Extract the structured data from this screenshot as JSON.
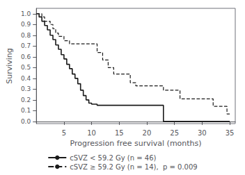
{
  "chart_data": {
    "type": "step",
    "xlabel": "Progression free survival (months)",
    "ylabel": "Surviving",
    "xlim": [
      0,
      36
    ],
    "ylim": [
      -0.02,
      1.05
    ],
    "xticks": [
      5,
      10,
      15,
      20,
      25,
      30,
      35
    ],
    "yticks": [
      {
        "value": 0.0,
        "label": "0.0"
      },
      0.1,
      0.2,
      0.3,
      0.4,
      0.5,
      0.6,
      0.7,
      0.8,
      0.9,
      {
        "value": 1.0,
        "label": "1.0"
      }
    ],
    "grid": false,
    "legend": "bottom",
    "series": [
      {
        "name": "cSVZ < 59.2 Gy (n = 46)",
        "color": "#1a1a1a",
        "line_style": "solid",
        "x": [
          0,
          0.5,
          1.0,
          1.5,
          2.0,
          2.5,
          3.0,
          3.5,
          4.0,
          4.5,
          5.0,
          5.5,
          6.0,
          6.5,
          7.0,
          7.5,
          8.0,
          8.5,
          9.0,
          9.5,
          10.0,
          11.0,
          12.0,
          22.5,
          23.0,
          35.0
        ],
        "values": [
          1.0,
          0.97,
          0.93,
          0.89,
          0.85,
          0.8,
          0.76,
          0.71,
          0.67,
          0.62,
          0.58,
          0.53,
          0.49,
          0.44,
          0.4,
          0.35,
          0.29,
          0.24,
          0.2,
          0.17,
          0.16,
          0.15,
          0.15,
          0.15,
          0.0,
          0.0
        ]
      },
      {
        "name": "cSVZ ≥ 59.2 Gy (n = 14),  p = 0.009",
        "color": "#1a1a1a",
        "line_style": "dashed",
        "x": [
          0,
          0.5,
          1.0,
          1.5,
          2.0,
          2.5,
          3.0,
          3.5,
          4.0,
          5.0,
          5.5,
          6.0,
          6.5,
          7.0,
          7.5,
          8.0,
          9.0,
          10.0,
          11.0,
          12.0,
          13.0,
          14.0,
          15.0,
          17.0,
          18.0,
          19.0,
          20.0,
          21.0,
          22.0,
          22.5,
          23.0,
          24.0,
          25.0,
          26.0,
          27.0,
          28.0,
          29.5,
          30.0,
          31.0,
          32.0,
          33.0,
          34.0,
          34.5,
          35.0
        ],
        "values": [
          1.0,
          1.0,
          0.97,
          0.93,
          0.93,
          0.9,
          0.86,
          0.82,
          0.79,
          0.75,
          0.75,
          0.72,
          0.72,
          0.72,
          0.72,
          0.72,
          0.72,
          0.72,
          0.64,
          0.57,
          0.5,
          0.44,
          0.44,
          0.36,
          0.33,
          0.33,
          0.33,
          0.33,
          0.33,
          0.33,
          0.29,
          0.29,
          0.29,
          0.21,
          0.21,
          0.21,
          0.21,
          0.21,
          0.21,
          0.14,
          0.14,
          0.14,
          0.07,
          0.07
        ]
      }
    ]
  }
}
